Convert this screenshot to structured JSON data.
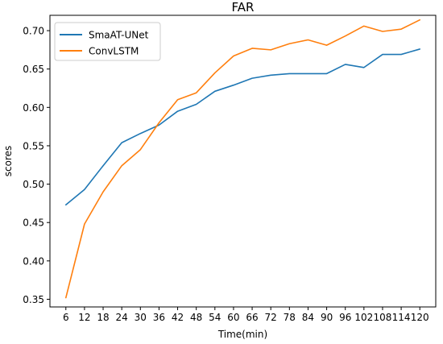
{
  "chart_data": {
    "type": "line",
    "title": "FAR",
    "xlabel": "Time(min)",
    "ylabel": "scores",
    "x": [
      6,
      12,
      18,
      24,
      30,
      36,
      42,
      48,
      54,
      60,
      66,
      72,
      78,
      84,
      90,
      96,
      102,
      108,
      114,
      120
    ],
    "ylim": [
      0.34,
      0.72
    ],
    "yticks": [
      "0.35",
      "0.40",
      "0.45",
      "0.50",
      "0.55",
      "0.60",
      "0.65",
      "0.70"
    ],
    "grid": false,
    "legend_position": "top-left",
    "series": [
      {
        "name": "SmaAT-UNet",
        "color": "#1f77b4",
        "values": [
          0.473,
          0.493,
          0.524,
          0.554,
          0.566,
          0.577,
          0.595,
          0.604,
          0.621,
          0.629,
          0.638,
          0.642,
          0.644,
          0.644,
          0.644,
          0.656,
          0.652,
          0.669,
          0.669,
          0.676
        ]
      },
      {
        "name": "ConvLSTM",
        "color": "#ff7f0e",
        "values": [
          0.352,
          0.448,
          0.49,
          0.524,
          0.545,
          0.58,
          0.61,
          0.619,
          0.645,
          0.667,
          0.677,
          0.675,
          0.683,
          0.688,
          0.681,
          0.693,
          0.706,
          0.699,
          0.702,
          0.714
        ]
      }
    ]
  }
}
